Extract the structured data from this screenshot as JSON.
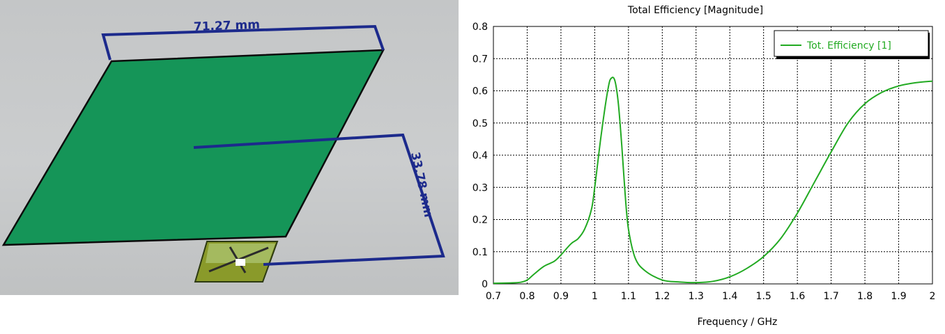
{
  "model": {
    "width_label": "71.27 mm",
    "height_label": "33.78 mm",
    "colors": {
      "ground_plane": "#159558",
      "pcb": "#8a9a2a",
      "dimension": "#1c2a8c"
    }
  },
  "chart_data": {
    "type": "line",
    "title": "Total Efficiency [Magnitude]",
    "xlabel": "Frequency / GHz",
    "ylabel": "",
    "xlim": [
      0.7,
      2.0
    ],
    "ylim": [
      0,
      0.8
    ],
    "xticks": [
      "0.7",
      "0.8",
      "0.9",
      "1",
      "1.1",
      "1.2",
      "1.3",
      "1.4",
      "1.5",
      "1.6",
      "1.7",
      "1.8",
      "1.9",
      "2"
    ],
    "yticks": [
      "0",
      "0.1",
      "0.2",
      "0.3",
      "0.4",
      "0.5",
      "0.6",
      "0.7",
      "0.8"
    ],
    "grid": true,
    "legend_position": "top-right",
    "series": [
      {
        "name": "Tot. Efficiency [1]",
        "color": "#22aa22",
        "x": [
          0.7,
          0.75,
          0.78,
          0.8,
          0.82,
          0.85,
          0.88,
          0.9,
          0.93,
          0.95,
          0.97,
          0.99,
          1.0,
          1.02,
          1.04,
          1.05,
          1.06,
          1.07,
          1.08,
          1.09,
          1.1,
          1.12,
          1.15,
          1.2,
          1.25,
          1.3,
          1.35,
          1.4,
          1.45,
          1.5,
          1.55,
          1.6,
          1.65,
          1.7,
          1.75,
          1.8,
          1.85,
          1.9,
          1.95,
          2.0
        ],
        "y": [
          0.002,
          0.003,
          0.005,
          0.012,
          0.03,
          0.055,
          0.07,
          0.09,
          0.125,
          0.14,
          0.17,
          0.23,
          0.3,
          0.47,
          0.61,
          0.64,
          0.63,
          0.56,
          0.43,
          0.28,
          0.17,
          0.08,
          0.04,
          0.012,
          0.006,
          0.004,
          0.008,
          0.022,
          0.048,
          0.085,
          0.14,
          0.22,
          0.315,
          0.41,
          0.5,
          0.56,
          0.595,
          0.615,
          0.625,
          0.63
        ]
      }
    ]
  }
}
